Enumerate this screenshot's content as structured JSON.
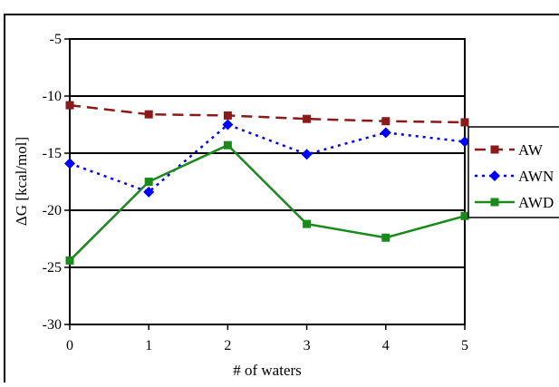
{
  "chart_data": {
    "type": "line",
    "title": "",
    "xlabel": "# of waters",
    "ylabel": "ΔG [kcal/mol]",
    "x": [
      0,
      1,
      2,
      3,
      4,
      5
    ],
    "xlim": [
      0,
      5
    ],
    "ylim": [
      -30,
      -5
    ],
    "yticks": [
      -30,
      -25,
      -20,
      -15,
      -10,
      -5
    ],
    "grid": "horizontal",
    "legend_position": "right",
    "series": [
      {
        "name": "AW",
        "values": [
          -10.8,
          -11.6,
          -11.7,
          -12.0,
          -12.2,
          -12.3
        ],
        "color": "#8b1a1a",
        "marker": "square",
        "dash": "long-dash"
      },
      {
        "name": "AWN",
        "values": [
          -15.9,
          -18.4,
          -12.5,
          -15.1,
          -13.2,
          -14.0
        ],
        "color": "#0000ff",
        "marker": "diamond",
        "dash": "dotted"
      },
      {
        "name": "AWD",
        "values": [
          -24.4,
          -17.5,
          -14.3,
          -21.2,
          -22.4,
          -20.5
        ],
        "color": "#1a8a1a",
        "marker": "square",
        "dash": "solid"
      }
    ]
  }
}
